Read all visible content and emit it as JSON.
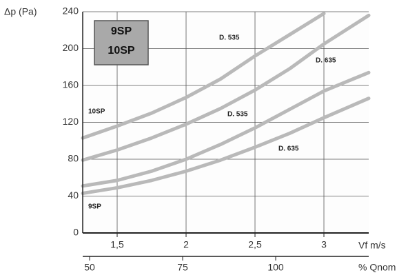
{
  "chart_data": {
    "type": "line",
    "y_label": "Δp (Pa)",
    "x_label": "Vf m/s",
    "x2_label": "% Qnom",
    "box_lines": [
      "9SP",
      "10SP"
    ],
    "annotations": [
      "10SP",
      "9SP"
    ],
    "x": [
      1.25,
      1.5,
      1.75,
      2,
      2.25,
      2.5,
      2.75,
      3,
      3.325
    ],
    "series": [
      {
        "name": "D. 535",
        "color": "#b9b9b9",
        "values": [
          103,
          116,
          130,
          147,
          167,
          192,
          215,
          238,
          null
        ]
      },
      {
        "name": "D. 635",
        "color": "#b9b9b9",
        "values": [
          79,
          90,
          103,
          118,
          135,
          155,
          178,
          205,
          236
        ]
      },
      {
        "name": "D. 535",
        "color": "#b9b9b9",
        "values": [
          51,
          57,
          67,
          80,
          96,
          114,
          134,
          154,
          174
        ]
      },
      {
        "name": "D. 635",
        "color": "#b9b9b9",
        "values": [
          43,
          49,
          57,
          67,
          79,
          93,
          108,
          125,
          146
        ]
      }
    ],
    "xlim": [
      1.25,
      3.325
    ],
    "xticks": [
      {
        "value": 1.5,
        "label": "1,5"
      },
      2,
      {
        "value": 2.5,
        "label": "2,5"
      },
      3
    ],
    "x2lim": [
      48.15,
      125
    ],
    "x2ticks": [
      50,
      75,
      100
    ],
    "ylim": [
      0,
      240
    ],
    "yticks": [
      0,
      40,
      80,
      120,
      160,
      200,
      240
    ],
    "grid": true
  }
}
